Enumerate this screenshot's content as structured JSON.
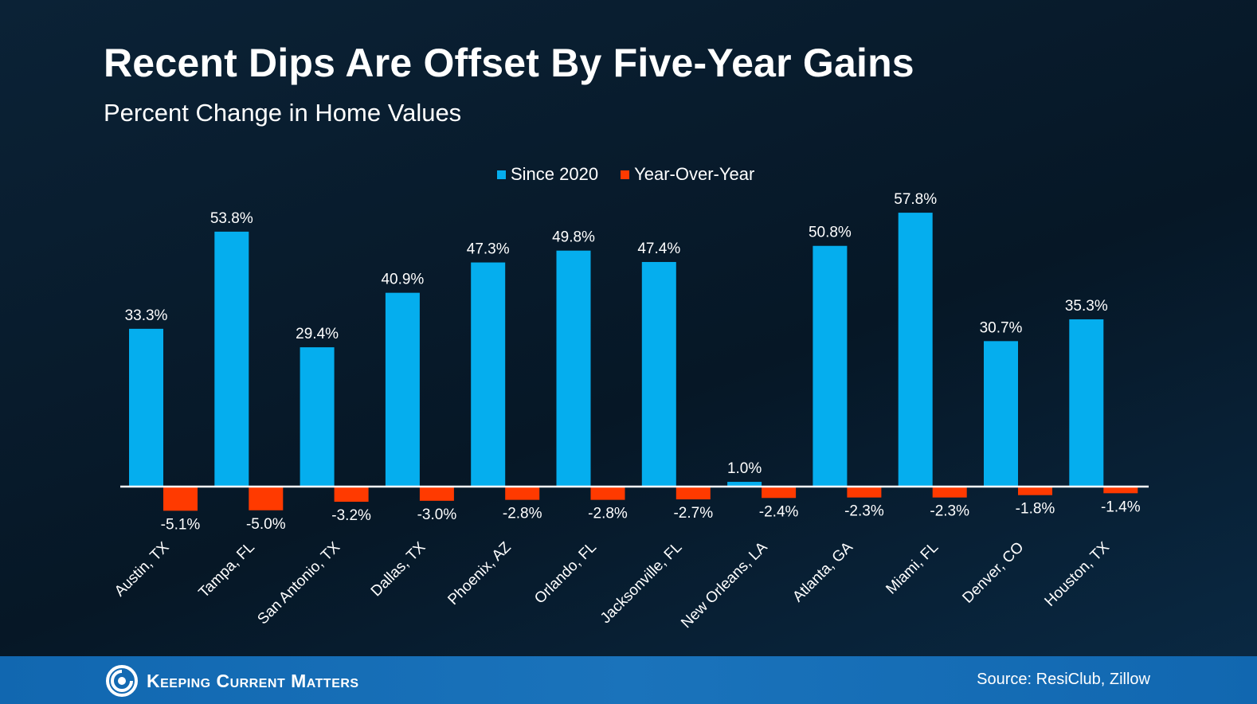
{
  "header": {
    "title": "Recent Dips Are Offset By Five-Year Gains",
    "subtitle": "Percent Change in Home Values"
  },
  "legend": [
    {
      "label": "Since 2020",
      "color": "#05aeee"
    },
    {
      "label": "Year-Over-Year",
      "color": "#ff3a00"
    }
  ],
  "chart_data": {
    "type": "bar",
    "title": "Recent Dips Are Offset By Five-Year Gains",
    "subtitle": "Percent Change in Home Values",
    "categories": [
      "Austin, TX",
      "Tampa, FL",
      "San Antonio, TX",
      "Dallas, TX",
      "Phoenix, AZ",
      "Orlando, FL",
      "Jacksonville, FL",
      "New Orleans, LA",
      "Atlanta, GA",
      "Miami, FL",
      "Denver, CO",
      "Houston, TX"
    ],
    "series": [
      {
        "name": "Since 2020",
        "color": "#05aeee",
        "values": [
          33.3,
          53.8,
          29.4,
          40.9,
          47.3,
          49.8,
          47.4,
          1.0,
          50.8,
          57.8,
          30.7,
          35.3
        ],
        "labels": [
          "33.3%",
          "53.8%",
          "29.4%",
          "40.9%",
          "47.3%",
          "49.8%",
          "47.4%",
          "1.0%",
          "50.8%",
          "57.8%",
          "30.7%",
          "35.3%"
        ]
      },
      {
        "name": "Year-Over-Year",
        "color": "#ff3a00",
        "values": [
          -5.1,
          -5.0,
          -3.2,
          -3.0,
          -2.8,
          -2.8,
          -2.7,
          -2.4,
          -2.3,
          -2.3,
          -1.8,
          -1.4
        ],
        "labels": [
          "-5.1%",
          "-5.0%",
          "-3.2%",
          "-3.0%",
          "-2.8%",
          "-2.8%",
          "-2.7%",
          "-2.4%",
          "-2.3%",
          "-2.3%",
          "-1.8%",
          "-1.4%"
        ]
      }
    ],
    "xlabel": "",
    "ylabel": "",
    "grid": false,
    "legend_position": "top-center"
  },
  "footer": {
    "brand": "Keeping Current Matters",
    "source": "Source: ResiClub, Zillow"
  }
}
